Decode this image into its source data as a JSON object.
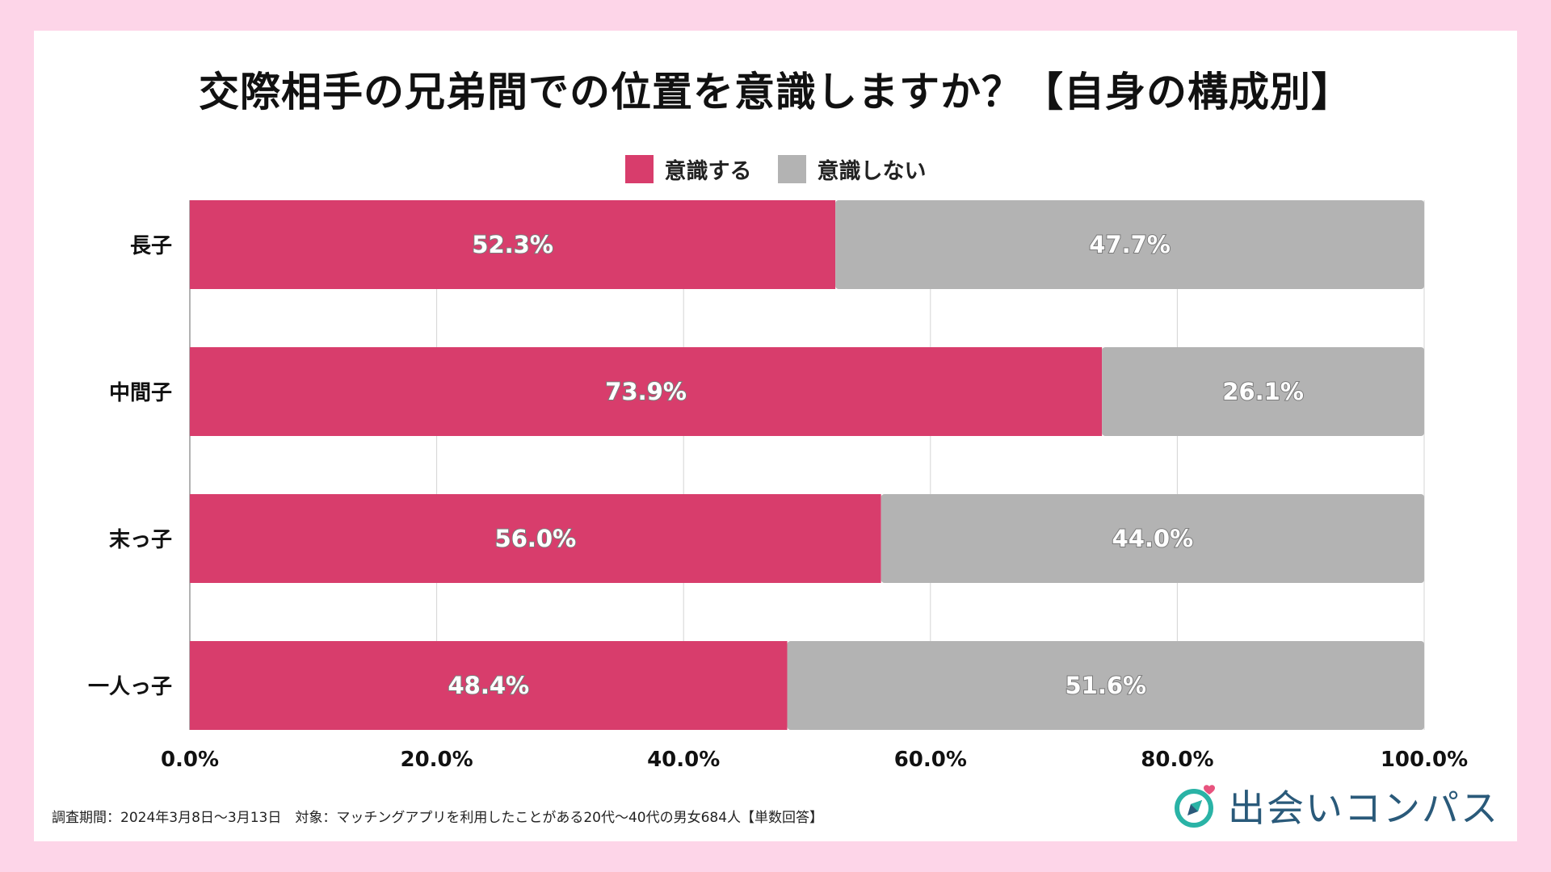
{
  "title": "交際相手の兄弟間での位置を意識しますか？【自身の構成別】",
  "legend": [
    {
      "label": "意識する",
      "color": "#d83d6c"
    },
    {
      "label": "意識しない",
      "color": "#b3b3b3"
    }
  ],
  "chart_data": {
    "type": "bar",
    "orientation": "horizontal",
    "stacked": true,
    "title": "交際相手の兄弟間での位置を意識しますか？【自身の構成別】",
    "categories": [
      "長子",
      "中間子",
      "末っ子",
      "一人っ子"
    ],
    "series": [
      {
        "name": "意識する",
        "values": [
          52.3,
          73.9,
          56.0,
          48.4
        ],
        "color": "#d83d6c"
      },
      {
        "name": "意識しない",
        "values": [
          47.7,
          26.1,
          44.0,
          51.6
        ],
        "color": "#b3b3b3"
      }
    ],
    "xlim": [
      0,
      100
    ],
    "xticks": [
      "0.0%",
      "20.0%",
      "40.0%",
      "60.0%",
      "80.0%",
      "100.0%"
    ],
    "xlabel": "",
    "ylabel": "",
    "grid": true,
    "legend_position": "top"
  },
  "footnote": "調査期間：2024年3月8日〜3月13日　対象：マッチングアプリを利用したことがある20代〜40代の男女684人【単数回答】",
  "logo": {
    "text": "出会いコンパス",
    "icon": "compass-heart-icon"
  }
}
